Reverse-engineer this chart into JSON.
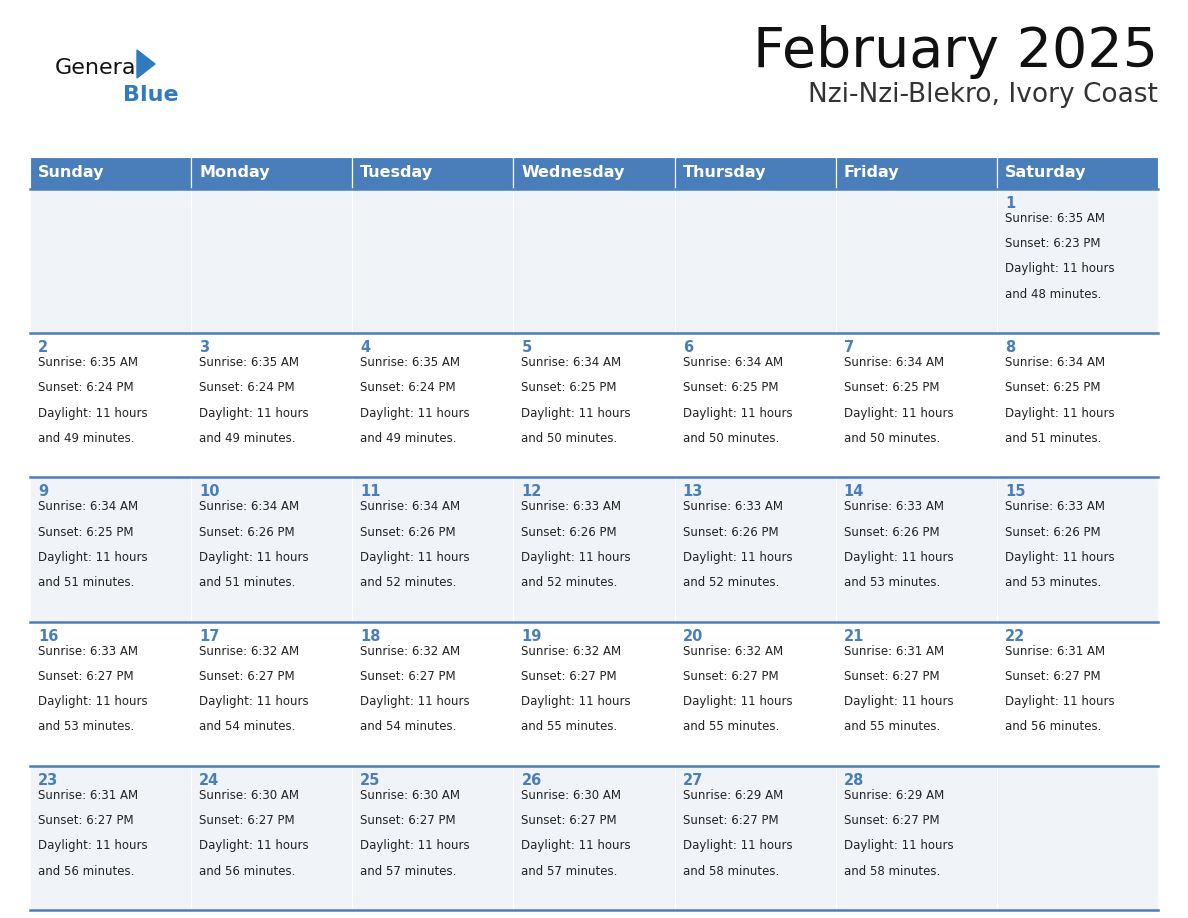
{
  "title": "February 2025",
  "subtitle": "Nzi-Nzi-Blekro, Ivory Coast",
  "days_of_week": [
    "Sunday",
    "Monday",
    "Tuesday",
    "Wednesday",
    "Thursday",
    "Friday",
    "Saturday"
  ],
  "header_bg": "#4a7ebb",
  "header_text": "#ffffff",
  "row_bg_odd": "#f0f4f8",
  "row_bg_even": "#ffffff",
  "cell_border_color": "#4a7ebb",
  "day_num_color": "#4a7ebb",
  "info_text_color": "#222222",
  "title_color": "#111111",
  "subtitle_color": "#333333",
  "logo_general_color": "#111111",
  "logo_blue_color": "#2e7bbf",
  "calendar_data": [
    [
      {
        "day": null,
        "sunrise": null,
        "sunset": null,
        "daylight": null
      },
      {
        "day": null,
        "sunrise": null,
        "sunset": null,
        "daylight": null
      },
      {
        "day": null,
        "sunrise": null,
        "sunset": null,
        "daylight": null
      },
      {
        "day": null,
        "sunrise": null,
        "sunset": null,
        "daylight": null
      },
      {
        "day": null,
        "sunrise": null,
        "sunset": null,
        "daylight": null
      },
      {
        "day": null,
        "sunrise": null,
        "sunset": null,
        "daylight": null
      },
      {
        "day": 1,
        "sunrise": "6:35 AM",
        "sunset": "6:23 PM",
        "daylight": "11 hours and 48 minutes."
      }
    ],
    [
      {
        "day": 2,
        "sunrise": "6:35 AM",
        "sunset": "6:24 PM",
        "daylight": "11 hours and 49 minutes."
      },
      {
        "day": 3,
        "sunrise": "6:35 AM",
        "sunset": "6:24 PM",
        "daylight": "11 hours and 49 minutes."
      },
      {
        "day": 4,
        "sunrise": "6:35 AM",
        "sunset": "6:24 PM",
        "daylight": "11 hours and 49 minutes."
      },
      {
        "day": 5,
        "sunrise": "6:34 AM",
        "sunset": "6:25 PM",
        "daylight": "11 hours and 50 minutes."
      },
      {
        "day": 6,
        "sunrise": "6:34 AM",
        "sunset": "6:25 PM",
        "daylight": "11 hours and 50 minutes."
      },
      {
        "day": 7,
        "sunrise": "6:34 AM",
        "sunset": "6:25 PM",
        "daylight": "11 hours and 50 minutes."
      },
      {
        "day": 8,
        "sunrise": "6:34 AM",
        "sunset": "6:25 PM",
        "daylight": "11 hours and 51 minutes."
      }
    ],
    [
      {
        "day": 9,
        "sunrise": "6:34 AM",
        "sunset": "6:25 PM",
        "daylight": "11 hours and 51 minutes."
      },
      {
        "day": 10,
        "sunrise": "6:34 AM",
        "sunset": "6:26 PM",
        "daylight": "11 hours and 51 minutes."
      },
      {
        "day": 11,
        "sunrise": "6:34 AM",
        "sunset": "6:26 PM",
        "daylight": "11 hours and 52 minutes."
      },
      {
        "day": 12,
        "sunrise": "6:33 AM",
        "sunset": "6:26 PM",
        "daylight": "11 hours and 52 minutes."
      },
      {
        "day": 13,
        "sunrise": "6:33 AM",
        "sunset": "6:26 PM",
        "daylight": "11 hours and 52 minutes."
      },
      {
        "day": 14,
        "sunrise": "6:33 AM",
        "sunset": "6:26 PM",
        "daylight": "11 hours and 53 minutes."
      },
      {
        "day": 15,
        "sunrise": "6:33 AM",
        "sunset": "6:26 PM",
        "daylight": "11 hours and 53 minutes."
      }
    ],
    [
      {
        "day": 16,
        "sunrise": "6:33 AM",
        "sunset": "6:27 PM",
        "daylight": "11 hours and 53 minutes."
      },
      {
        "day": 17,
        "sunrise": "6:32 AM",
        "sunset": "6:27 PM",
        "daylight": "11 hours and 54 minutes."
      },
      {
        "day": 18,
        "sunrise": "6:32 AM",
        "sunset": "6:27 PM",
        "daylight": "11 hours and 54 minutes."
      },
      {
        "day": 19,
        "sunrise": "6:32 AM",
        "sunset": "6:27 PM",
        "daylight": "11 hours and 55 minutes."
      },
      {
        "day": 20,
        "sunrise": "6:32 AM",
        "sunset": "6:27 PM",
        "daylight": "11 hours and 55 minutes."
      },
      {
        "day": 21,
        "sunrise": "6:31 AM",
        "sunset": "6:27 PM",
        "daylight": "11 hours and 55 minutes."
      },
      {
        "day": 22,
        "sunrise": "6:31 AM",
        "sunset": "6:27 PM",
        "daylight": "11 hours and 56 minutes."
      }
    ],
    [
      {
        "day": 23,
        "sunrise": "6:31 AM",
        "sunset": "6:27 PM",
        "daylight": "11 hours and 56 minutes."
      },
      {
        "day": 24,
        "sunrise": "6:30 AM",
        "sunset": "6:27 PM",
        "daylight": "11 hours and 56 minutes."
      },
      {
        "day": 25,
        "sunrise": "6:30 AM",
        "sunset": "6:27 PM",
        "daylight": "11 hours and 57 minutes."
      },
      {
        "day": 26,
        "sunrise": "6:30 AM",
        "sunset": "6:27 PM",
        "daylight": "11 hours and 57 minutes."
      },
      {
        "day": 27,
        "sunrise": "6:29 AM",
        "sunset": "6:27 PM",
        "daylight": "11 hours and 58 minutes."
      },
      {
        "day": 28,
        "sunrise": "6:29 AM",
        "sunset": "6:27 PM",
        "daylight": "11 hours and 58 minutes."
      },
      {
        "day": null,
        "sunrise": null,
        "sunset": null,
        "daylight": null
      }
    ]
  ]
}
